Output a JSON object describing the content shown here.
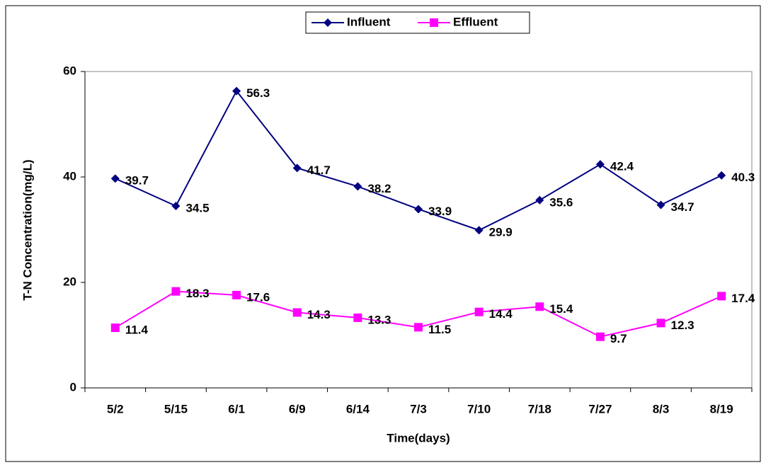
{
  "chart_data": {
    "type": "line",
    "xlabel": "Time(days)",
    "ylabel": "T-N Concentration(mg/L)",
    "categories": [
      "5/2",
      "5/15",
      "6/1",
      "6/9",
      "6/14",
      "7/3",
      "7/10",
      "7/18",
      "7/27",
      "8/3",
      "8/19"
    ],
    "series": [
      {
        "name": "Influent",
        "color": "#000080",
        "marker": "diamond",
        "values": [
          39.7,
          34.5,
          56.3,
          41.7,
          38.2,
          33.9,
          29.9,
          35.6,
          42.4,
          34.7,
          40.3
        ]
      },
      {
        "name": "Effluent",
        "color": "#ff00ff",
        "marker": "square",
        "values": [
          11.4,
          18.3,
          17.6,
          14.3,
          13.3,
          11.5,
          14.4,
          15.4,
          9.7,
          12.3,
          17.4
        ]
      }
    ],
    "ylim": [
      0,
      60
    ],
    "yticks": [
      0,
      20,
      40,
      60
    ],
    "grid": false,
    "legend": "top"
  }
}
